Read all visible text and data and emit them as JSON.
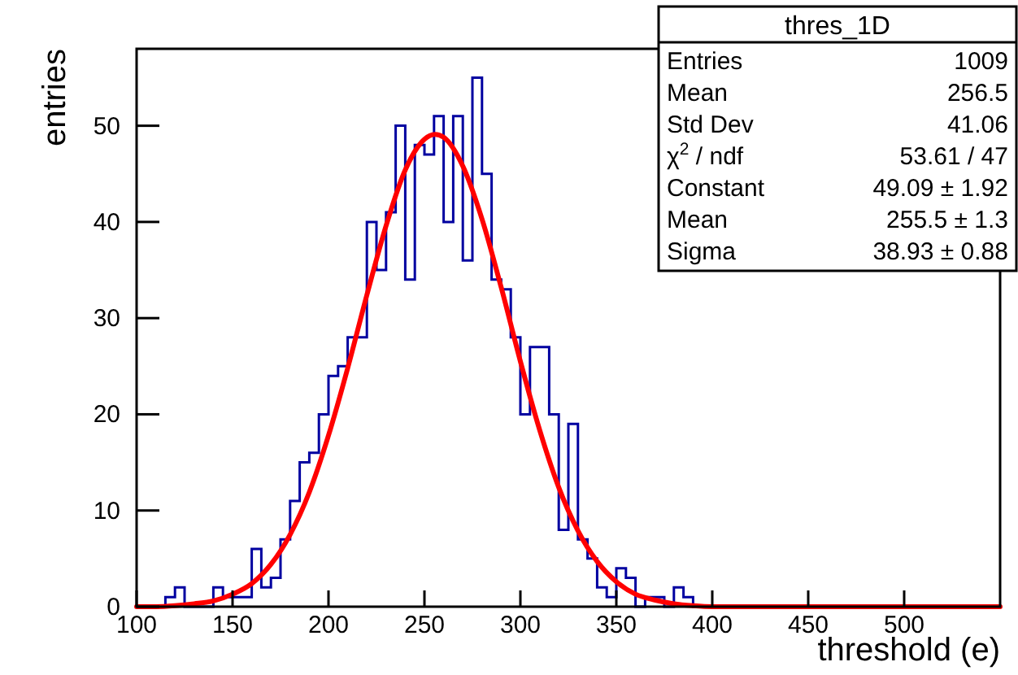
{
  "chart_data": {
    "type": "histogram",
    "xlabel": "threshold (e)",
    "ylabel": "entries",
    "xlim": [
      100,
      550
    ],
    "ylim": [
      0,
      58
    ],
    "xticks": [
      100,
      150,
      200,
      250,
      300,
      350,
      400,
      450,
      500
    ],
    "yticks": [
      0,
      10,
      20,
      30,
      40,
      50
    ],
    "grid": false,
    "series": [
      {
        "color": "#0000a0",
        "bins": [
          100,
          105,
          110,
          115,
          120,
          125,
          130,
          135,
          140,
          145,
          150,
          155,
          160,
          165,
          170,
          175,
          180,
          185,
          190,
          195,
          200,
          205,
          210,
          215,
          220,
          225,
          230,
          235,
          240,
          245,
          250,
          255,
          260,
          265,
          270,
          275,
          280,
          285,
          290,
          295,
          300,
          305,
          310,
          315,
          320,
          325,
          330,
          335,
          340,
          345,
          350,
          355,
          360,
          365,
          370,
          375,
          380,
          385,
          390,
          395,
          400,
          405,
          410,
          415,
          420,
          425,
          430,
          435,
          440,
          445,
          450,
          455,
          460,
          465,
          470,
          475,
          480,
          485,
          490,
          495,
          500,
          505,
          510,
          515,
          520,
          525,
          530,
          535,
          540,
          545,
          550
        ],
        "values": [
          0,
          0,
          0,
          1,
          2,
          0,
          0,
          0,
          2,
          1,
          1,
          1,
          6,
          2,
          3,
          7,
          11,
          15,
          16,
          20,
          24,
          25,
          28,
          28,
          40,
          35,
          41,
          50,
          34,
          48,
          47,
          51,
          40,
          51,
          36,
          55,
          45,
          34,
          33,
          28,
          20,
          27,
          27,
          20,
          8,
          19,
          7,
          5,
          2,
          1,
          4,
          3,
          0,
          1,
          1,
          0,
          2,
          1,
          0,
          0,
          0,
          0,
          0,
          0,
          0,
          0,
          0,
          0,
          0,
          0,
          0,
          0,
          0,
          0,
          0,
          0,
          0,
          0,
          0,
          0,
          0,
          0,
          0,
          0,
          0,
          0,
          0,
          0,
          0,
          0
        ]
      },
      {
        "type": "line",
        "color": "#ff0000",
        "x": [
          100,
          110,
          120,
          130,
          140,
          150,
          160,
          170,
          180,
          190,
          200,
          210,
          220,
          230,
          240,
          250,
          255.5,
          260,
          270,
          280,
          290,
          300,
          310,
          320,
          330,
          340,
          350,
          360,
          370,
          380,
          390,
          400,
          450,
          550
        ],
        "values": [
          0,
          0,
          0.1,
          0.3,
          0.6,
          1.3,
          2.4,
          4.4,
          7.5,
          11.9,
          17.8,
          24.8,
          32.4,
          39.6,
          45.4,
          48.6,
          49.1,
          48.8,
          45.8,
          40.3,
          33.2,
          25.5,
          18.4,
          12.4,
          7.9,
          4.7,
          2.6,
          1.3,
          0.7,
          0.3,
          0.1,
          0,
          0,
          0
        ]
      }
    ],
    "annotations": [
      "thres_1D",
      "Entries",
      "1009",
      "Mean",
      "256.5",
      "Std Dev",
      "41.06",
      "χ$^{2}$ / ndf",
      "53.61 / 47",
      "Constant",
      "49.09 ± 1.92",
      "Mean",
      "255.5 ± 1.3",
      "Sigma",
      "38.93 ± 0.88"
    ]
  }
}
